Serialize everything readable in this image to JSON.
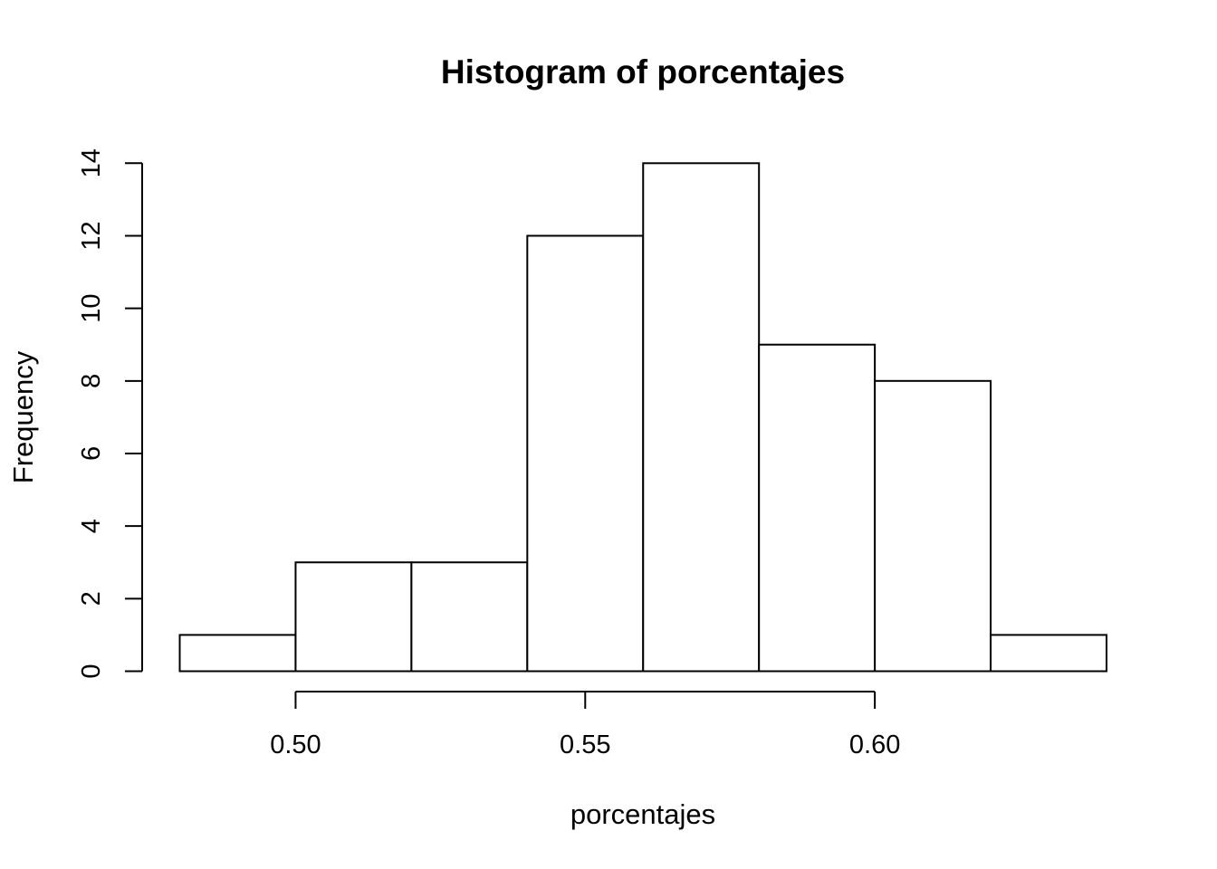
{
  "chart_data": {
    "type": "bar",
    "title": "Histogram of porcentajes",
    "xlabel": "porcentajes",
    "ylabel": "Frequency",
    "bins": [
      {
        "start": 0.48,
        "end": 0.5,
        "count": 1
      },
      {
        "start": 0.5,
        "end": 0.52,
        "count": 3
      },
      {
        "start": 0.52,
        "end": 0.54,
        "count": 3
      },
      {
        "start": 0.54,
        "end": 0.56,
        "count": 12
      },
      {
        "start": 0.56,
        "end": 0.58,
        "count": 14
      },
      {
        "start": 0.58,
        "end": 0.6,
        "count": 9
      },
      {
        "start": 0.6,
        "end": 0.62,
        "count": 8
      },
      {
        "start": 0.62,
        "end": 0.64,
        "count": 1
      }
    ],
    "x_ticks": [
      0.5,
      0.55,
      0.6
    ],
    "x_tick_labels": [
      "0.50",
      "0.55",
      "0.60"
    ],
    "y_ticks": [
      0,
      2,
      4,
      6,
      8,
      10,
      12,
      14
    ],
    "y_tick_labels": [
      "0",
      "2",
      "4",
      "6",
      "8",
      "10",
      "12",
      "14"
    ],
    "xlim": [
      0.48,
      0.64
    ],
    "ylim": [
      0,
      14
    ],
    "grid": false,
    "colors": {
      "bar_fill": "#ffffff",
      "bar_stroke": "#000000"
    }
  }
}
